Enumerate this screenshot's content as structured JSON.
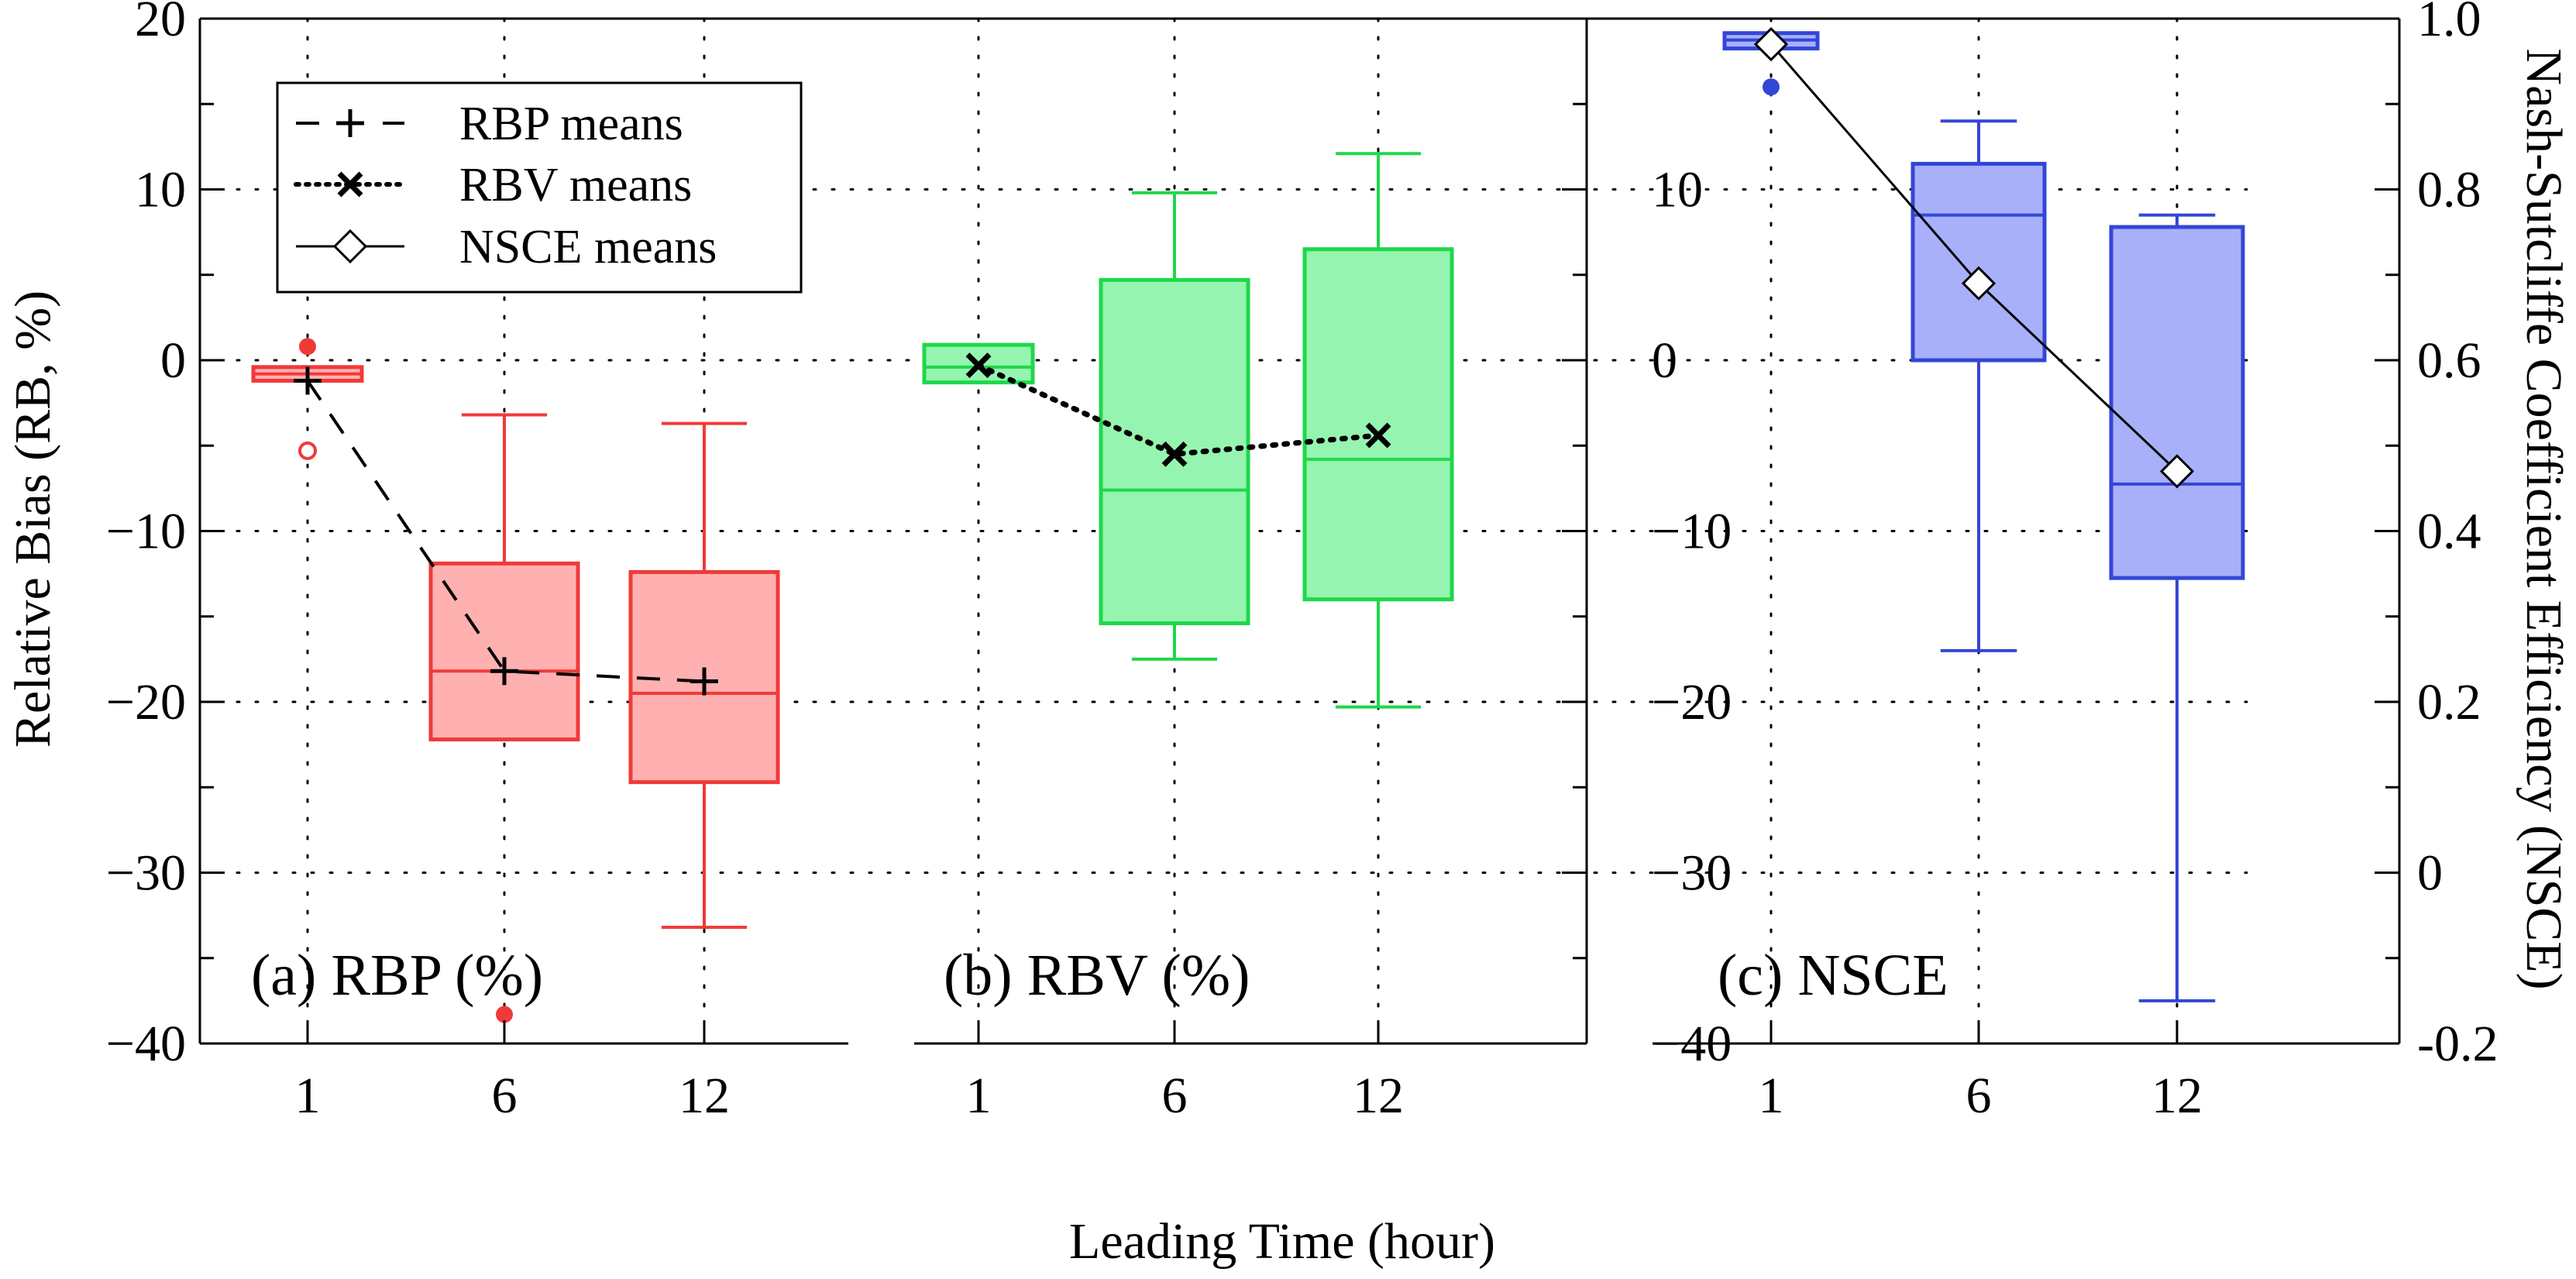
{
  "chart_data": {
    "type": "box",
    "x_axis": {
      "label": "Leading Time (hour)",
      "categories": [
        "1",
        "6",
        "12"
      ]
    },
    "y_axis_left": {
      "label": "Relative Bias (RB, %)",
      "range": [
        -40,
        20
      ],
      "ticks": [
        20,
        10,
        0,
        -10,
        -20,
        -30,
        -40
      ],
      "tick_labels": [
        "20",
        "10",
        "0",
        "−10",
        "−20",
        "−30",
        "−40"
      ]
    },
    "y_axis_middle": {
      "range": [
        -40,
        20
      ],
      "ticks": [
        10,
        0,
        -10,
        -20,
        -30,
        -40
      ],
      "tick_labels": [
        "10",
        "0",
        "−10",
        "−20",
        "−30",
        "−40"
      ]
    },
    "y_axis_right": {
      "label": "Nash-Sutcliffe Coefficient Efficiency (NSCE)",
      "range": [
        -0.2,
        1.0
      ],
      "ticks": [
        1.0,
        0.8,
        0.6,
        0.4,
        0.2,
        0,
        -0.2
      ],
      "tick_labels": [
        "1.0",
        "0.8",
        "0.6",
        "0.4",
        "0.2",
        "0",
        "-0.2"
      ]
    },
    "grid": true,
    "legend": {
      "position": "top-left",
      "entries": [
        {
          "label": "RBP means",
          "marker": "plus",
          "line": "dashed"
        },
        {
          "label": "RBV means",
          "marker": "x",
          "line": "dotted"
        },
        {
          "label": "NSCE means",
          "marker": "diamond",
          "line": "solid"
        }
      ]
    },
    "panels": [
      {
        "label": "(a) RBP (%)",
        "metric": "RBP",
        "axis": "left",
        "color": "#f03a3a",
        "fill": "#ffb0b0",
        "mean_line": "dashed",
        "mean_marker": "plus",
        "boxes": [
          {
            "category": "1",
            "whisker_low": -1.2,
            "q1": -1.2,
            "median": -0.8,
            "q3": -0.4,
            "whisker_high": -0.4,
            "mean": -1.2,
            "outliers_filled": [
              0.8
            ],
            "outliers_open": [
              -5.3
            ]
          },
          {
            "category": "6",
            "whisker_low": -22.2,
            "q1": -22.2,
            "median": -18.2,
            "q3": -11.9,
            "whisker_high": -3.2,
            "mean": -18.2,
            "outliers_filled": [
              -38.3
            ],
            "outliers_open": []
          },
          {
            "category": "12",
            "whisker_low": -33.2,
            "q1": -24.7,
            "median": -19.5,
            "q3": -12.4,
            "whisker_high": -3.7,
            "mean": -18.8,
            "outliers_filled": [],
            "outliers_open": []
          }
        ]
      },
      {
        "label": "(b) RBV (%)",
        "metric": "RBV",
        "axis": "left",
        "color": "#1ed84a",
        "fill": "#95f5b0",
        "mean_line": "dotted",
        "mean_marker": "x",
        "boxes": [
          {
            "category": "1",
            "whisker_low": -1.3,
            "q1": -1.3,
            "median": -0.4,
            "q3": 0.9,
            "whisker_high": 0.9,
            "mean": -0.3,
            "outliers_filled": [],
            "outliers_open": []
          },
          {
            "category": "6",
            "whisker_low": -17.5,
            "q1": -15.4,
            "median": -7.6,
            "q3": 4.7,
            "whisker_high": 9.8,
            "mean": -5.5,
            "outliers_filled": [],
            "outliers_open": []
          },
          {
            "category": "12",
            "whisker_low": -20.3,
            "q1": -14.0,
            "median": -5.8,
            "q3": 6.5,
            "whisker_high": 12.1,
            "mean": -4.4,
            "outliers_filled": [],
            "outliers_open": []
          }
        ]
      },
      {
        "label": "(c) NSCE",
        "metric": "NSCE",
        "axis": "right",
        "color": "#3346d6",
        "fill": "#a8b0fa",
        "mean_line": "solid",
        "mean_marker": "diamond",
        "boxes": [
          {
            "category": "1",
            "whisker_low": 0.965,
            "q1": 0.965,
            "median": 0.975,
            "q3": 0.983,
            "whisker_high": 0.983,
            "mean": 0.97,
            "outliers_filled": [
              0.92
            ],
            "outliers_open": []
          },
          {
            "category": "6",
            "whisker_low": 0.26,
            "q1": 0.6,
            "median": 0.77,
            "q3": 0.83,
            "whisker_high": 0.88,
            "mean": 0.69,
            "outliers_filled": [],
            "outliers_open": []
          },
          {
            "category": "12",
            "whisker_low": -0.15,
            "q1": 0.345,
            "median": 0.455,
            "q3": 0.756,
            "whisker_high": 0.77,
            "mean": 0.47,
            "outliers_filled": [],
            "outliers_open": []
          }
        ]
      }
    ]
  }
}
